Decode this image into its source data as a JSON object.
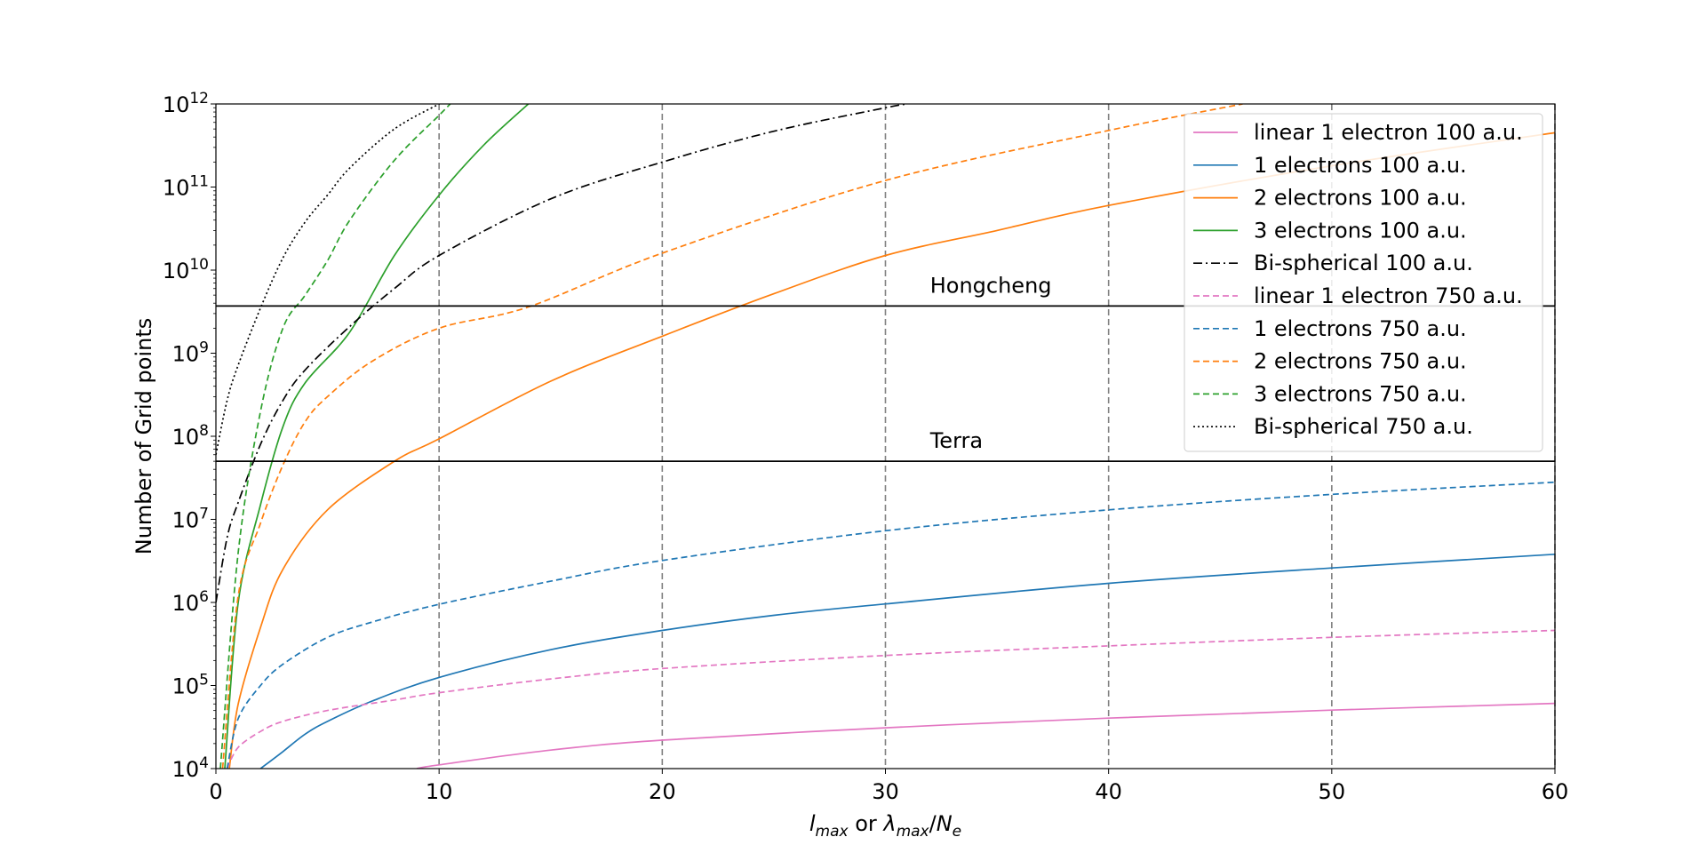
{
  "chart_data": {
    "type": "line",
    "xlabel": "l_max or λ_max/N_e",
    "ylabel": "Number of Grid points",
    "xlim": [
      0,
      60
    ],
    "ylim_log10": [
      4,
      12
    ],
    "yscale": "log",
    "x_ticks": [
      0,
      10,
      20,
      30,
      40,
      50,
      60
    ],
    "y_ticks": [
      {
        "base": "10",
        "exp": "4"
      },
      {
        "base": "10",
        "exp": "5"
      },
      {
        "base": "10",
        "exp": "6"
      },
      {
        "base": "10",
        "exp": "7"
      },
      {
        "base": "10",
        "exp": "8"
      },
      {
        "base": "10",
        "exp": "9"
      },
      {
        "base": "10",
        "exp": "10"
      },
      {
        "base": "10",
        "exp": "11"
      },
      {
        "base": "10",
        "exp": "12"
      }
    ],
    "vertical_gridlines_x": [
      10,
      20,
      30,
      40,
      50,
      60
    ],
    "legend_position": "upper right",
    "series": [
      {
        "name": "linear 1 electron 100 a.u.",
        "color": "#e377c2",
        "dash": "solid",
        "x": [
          9,
          10,
          15,
          20,
          30,
          40,
          50,
          60
        ],
        "y": [
          10000,
          11100,
          16700,
          22000,
          31000,
          40500,
          50500,
          61000
        ]
      },
      {
        "name": "1 electrons 100 a.u.",
        "color": "#1f77b4",
        "dash": "solid",
        "x": [
          2,
          3,
          4,
          5,
          7,
          10,
          15,
          20,
          25,
          30,
          40,
          50,
          60
        ],
        "y": [
          10000,
          16000,
          26000,
          37000,
          65000,
          125000,
          270000,
          460000,
          700000,
          960000,
          1700000,
          2600000,
          3800000
        ]
      },
      {
        "name": "2 electrons 100 a.u.",
        "color": "#ff7f0e",
        "dash": "solid",
        "x": [
          0.6,
          1,
          2,
          3,
          5,
          8,
          10,
          15,
          20,
          25,
          30,
          35,
          40,
          50,
          60
        ],
        "y": [
          10000,
          60000,
          500000,
          2500000,
          13000000,
          50000000,
          93000000,
          460000000,
          1600000000,
          5200000000,
          15000000000,
          30000000000,
          60000000000,
          180000000000,
          450000000000
        ]
      },
      {
        "name": "3 electrons 100 a.u.",
        "color": "#2ca02c",
        "dash": "solid",
        "x": [
          0.4,
          1,
          2,
          3,
          4,
          6,
          8,
          10,
          12,
          14
        ],
        "y": [
          10000,
          1000000,
          15000000,
          130000000,
          440000000,
          1800000000,
          15000000000,
          80000000000,
          320000000000,
          1000000000000
        ]
      },
      {
        "name": "Bi-spherical 100 a.u.",
        "color": "#000000",
        "dash": "dashdot",
        "x": [
          0,
          0.5,
          1,
          2,
          3,
          4,
          6,
          8,
          10,
          15,
          20,
          25,
          30,
          31
        ],
        "y": [
          1000000,
          6000000,
          16000000,
          80000000,
          270000000,
          630000000,
          2100000000,
          6000000000,
          15000000000,
          72000000000,
          200000000000,
          470000000000,
          900000000000,
          1000000000000
        ]
      },
      {
        "name": "linear 1 electron 750 a.u.",
        "color": "#e377c2",
        "dash": "dashed",
        "x": [
          0.5,
          1,
          2,
          3,
          5,
          8,
          10,
          15,
          20,
          30,
          40,
          50,
          60
        ],
        "y": [
          10000,
          18000,
          28000,
          37000,
          50000,
          67000,
          82000,
          120000,
          160000,
          230000,
          300000,
          380000,
          460000
        ]
      },
      {
        "name": "1 electrons 750 a.u.",
        "color": "#1f77b4",
        "dash": "dashed",
        "x": [
          0.5,
          1,
          2,
          3,
          5,
          7,
          10,
          15,
          20,
          30,
          40,
          50,
          60
        ],
        "y": [
          10000,
          40000,
          100000,
          180000,
          380000,
          580000,
          950000,
          1800000,
          3200000,
          7300000,
          13000000,
          20000000,
          28000000
        ]
      },
      {
        "name": "2 electrons 750 a.u.",
        "color": "#ff7f0e",
        "dash": "dashed",
        "x": [
          0.3,
          1,
          2,
          3,
          4,
          5,
          7,
          10,
          14,
          20,
          30,
          40,
          46
        ],
        "y": [
          10000,
          1200000,
          9000000,
          45000000,
          150000000,
          300000000,
          800000000,
          2000000000,
          3600000000,
          16000000000,
          120000000000,
          480000000000,
          1000000000000
        ]
      },
      {
        "name": "3 electrons 750 a.u.",
        "color": "#2ca02c",
        "dash": "dashed",
        "x": [
          0.2,
          1,
          2,
          3,
          4,
          5,
          6,
          8,
          10,
          10.5
        ],
        "y": [
          10000,
          4000000,
          200000000,
          2000000000,
          5000000000,
          13000000000,
          40000000000,
          210000000000,
          730000000000,
          1000000000000
        ]
      },
      {
        "name": "Bi-spherical 750 a.u.",
        "color": "#000000",
        "dash": "dotted",
        "x": [
          0,
          0.5,
          1,
          2,
          3,
          4,
          5,
          6,
          8,
          10
        ],
        "y": [
          60000000,
          270000000,
          720000000,
          3500000000,
          14000000000,
          38000000000,
          80000000000,
          170000000000,
          500000000000,
          1000000000000
        ]
      }
    ],
    "hlines": [
      {
        "label": "Hongcheng",
        "y": 3700000000,
        "label_x": 32
      },
      {
        "label": "Terra",
        "y": 50000000,
        "label_x": 32
      }
    ]
  }
}
